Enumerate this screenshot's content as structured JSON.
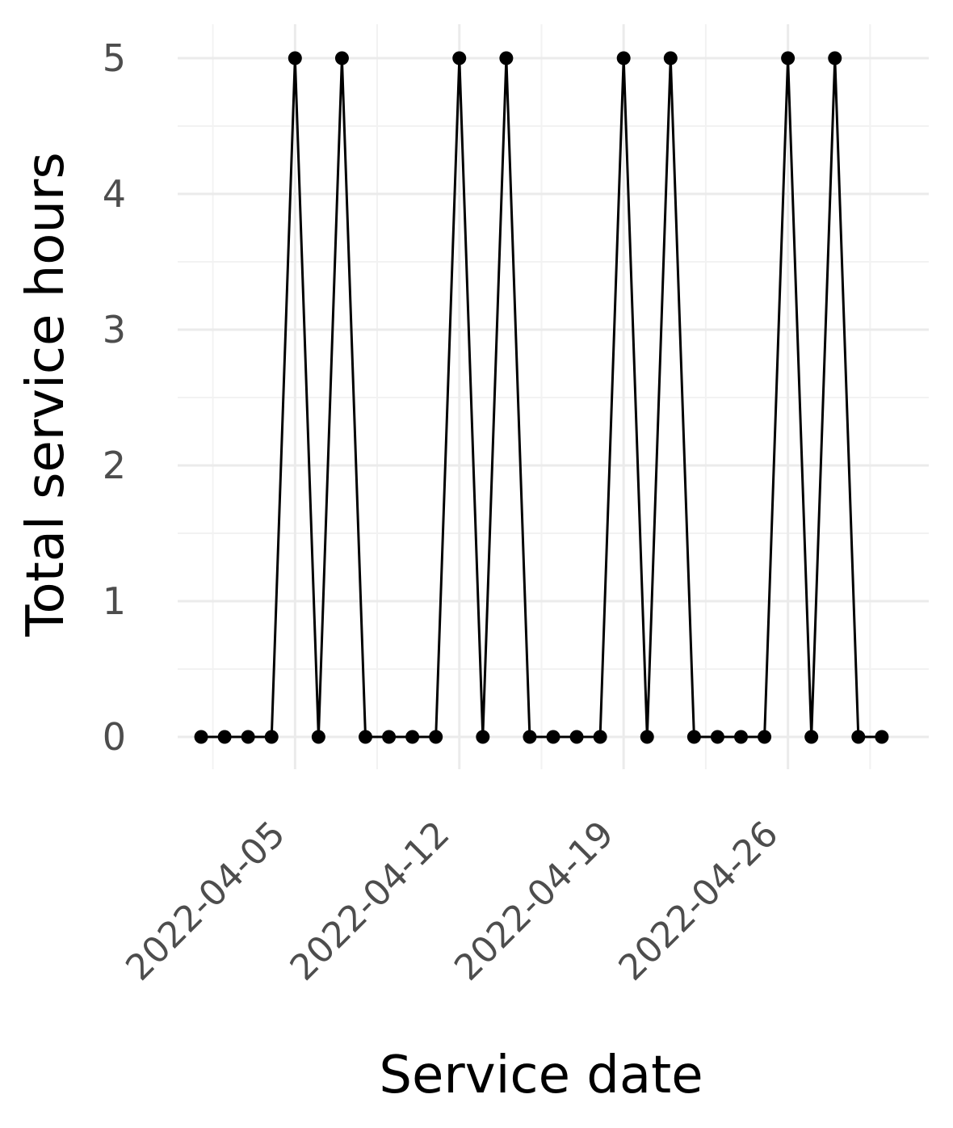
{
  "chart_data": {
    "type": "line",
    "title": "",
    "xlabel": "Service date",
    "ylabel": "Total service hours",
    "x_ticks": [
      "2022-04-05",
      "2022-04-12",
      "2022-04-19",
      "2022-04-26"
    ],
    "y_ticks": [
      "0",
      "1",
      "2",
      "3",
      "4",
      "5"
    ],
    "ylim": [
      0,
      5
    ],
    "xlim": [
      "2022-03-31",
      "2022-05-02"
    ],
    "grid": true,
    "legend": "none",
    "line_color": "#000000",
    "point_color": "#000000",
    "series": [
      {
        "x": [
          "2022-04-01",
          "2022-04-02",
          "2022-04-03",
          "2022-04-04",
          "2022-04-05",
          "2022-04-06",
          "2022-04-07",
          "2022-04-08",
          "2022-04-09",
          "2022-04-10",
          "2022-04-11",
          "2022-04-12",
          "2022-04-13",
          "2022-04-14",
          "2022-04-15",
          "2022-04-16",
          "2022-04-17",
          "2022-04-18",
          "2022-04-19",
          "2022-04-20",
          "2022-04-21",
          "2022-04-22",
          "2022-04-23",
          "2022-04-24",
          "2022-04-25",
          "2022-04-26",
          "2022-04-27",
          "2022-04-28",
          "2022-04-29",
          "2022-04-30"
        ],
        "values": [
          0,
          0,
          0,
          0,
          5,
          0,
          5,
          0,
          0,
          0,
          0,
          5,
          0,
          5,
          0,
          0,
          0,
          0,
          5,
          0,
          5,
          0,
          0,
          0,
          0,
          5,
          0,
          5,
          0,
          0
        ]
      }
    ]
  }
}
